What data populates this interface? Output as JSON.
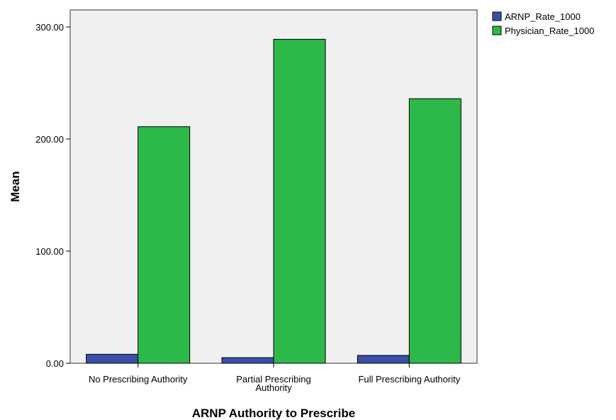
{
  "chart_data": {
    "type": "bar",
    "categories": [
      [
        "No Prescribing Authority"
      ],
      [
        "Partial Prescribing",
        "Authority"
      ],
      [
        "Full Prescribing Authority"
      ]
    ],
    "series": [
      {
        "name": "ARNP_Rate_1000",
        "values": [
          8,
          5,
          7
        ],
        "color": "#3a4fa8"
      },
      {
        "name": "Physician_Rate_1000",
        "values": [
          211,
          289,
          236
        ],
        "color": "#2db84a"
      }
    ],
    "xlabel": "ARNP Authority to Prescribe",
    "ylabel": "Mean",
    "ylim": [
      0,
      300
    ],
    "yticks": [
      "0.00",
      "100.00",
      "200.00",
      "300.00"
    ],
    "ytick_values": [
      0,
      100,
      200,
      300
    ],
    "legend_position": "top-right",
    "plot_background": "#f0f0f0",
    "grid": false
  }
}
